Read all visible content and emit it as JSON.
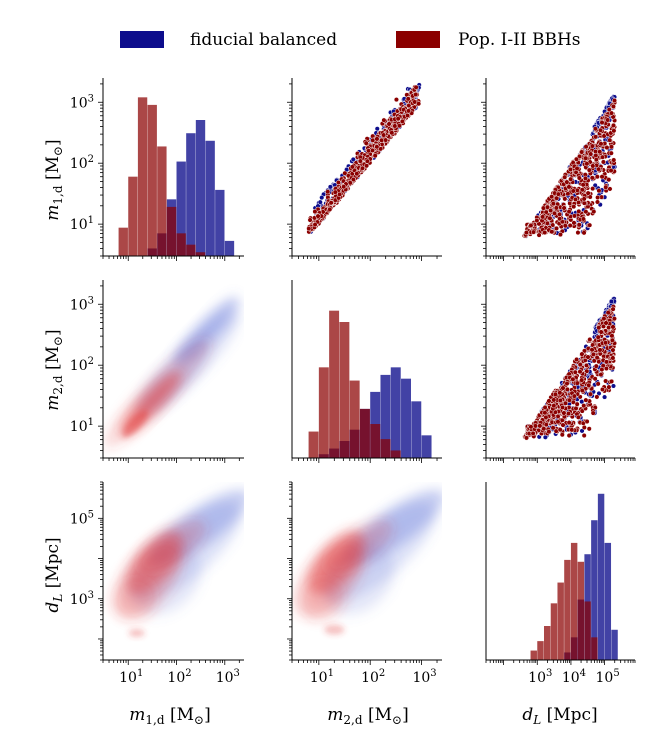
{
  "legend": {
    "entries": [
      {
        "label": "fiducial balanced",
        "color": "#0d0d8c"
      },
      {
        "label": "Pop. I-II BBHs",
        "color": "#8b0000"
      }
    ]
  },
  "colors": {
    "fiducial": "#0d0d8c",
    "popI": "#8b0000",
    "fiducial_kde": "#5b6fd6",
    "popI_kde": "#e23b3b"
  },
  "axis_titles": {
    "m1d": "m1,d [M⊙]",
    "m2d": "m2,d [M⊙]",
    "dL": "dL [Mpc]"
  },
  "tick_labels": {
    "mass": [
      "10^1",
      "10^2",
      "10^3"
    ],
    "dist_y": [
      "10^3",
      "10^5"
    ],
    "dist_x": [
      "10^3",
      "10^4",
      "10^5"
    ]
  },
  "chart_data": {
    "type": "corner",
    "variables": [
      "m1,d [M⊙]",
      "m2,d [M⊙]",
      "dL [Mpc]"
    ],
    "scale": "log",
    "ranges": {
      "m1d": [
        3,
        2500
      ],
      "m2d": [
        3,
        2500
      ],
      "dL_y": [
        30,
        800000
      ],
      "dL_x": [
        30,
        800000
      ]
    },
    "diagonal_histograms": [
      {
        "variable": "m1,d",
        "series": [
          {
            "name": "fiducial balanced",
            "bins_log10": [
              1.4,
              1.6,
              1.8,
              2.0,
              2.2,
              2.4,
              2.6,
              2.8,
              3.0
            ],
            "counts": [
              40,
              120,
              300,
              500,
              650,
              720,
              610,
              350,
              80
            ]
          },
          {
            "name": "Pop. I-II BBHs",
            "bins_log10": [
              0.8,
              1.0,
              1.2,
              1.4,
              1.6,
              1.8,
              2.0,
              2.2,
              2.4
            ],
            "counts": [
              150,
              420,
              840,
              800,
              580,
              260,
              120,
              60,
              20
            ]
          }
        ]
      },
      {
        "variable": "m2,d",
        "series": [
          {
            "name": "fiducial balanced",
            "bins_log10": [
              1.0,
              1.2,
              1.4,
              1.6,
              1.8,
              2.0,
              2.2,
              2.4,
              2.6,
              2.8,
              3.0
            ],
            "counts": [
              20,
              50,
              90,
              150,
              260,
              350,
              440,
              480,
              420,
              300,
              120
            ]
          },
          {
            "name": "Pop. I-II BBHs",
            "bins_log10": [
              0.8,
              1.0,
              1.2,
              1.4,
              1.6,
              1.8,
              2.0,
              2.2,
              2.4
            ],
            "counts": [
              140,
              480,
              780,
              720,
              410,
              260,
              180,
              100,
              40
            ]
          }
        ]
      },
      {
        "variable": "dL",
        "series": [
          {
            "name": "fiducial balanced",
            "bins_log10": [
              3.8,
              4.0,
              4.2,
              4.4,
              4.6,
              4.8,
              5.0,
              5.2
            ],
            "counts": [
              40,
              120,
              320,
              560,
              740,
              880,
              620,
              160
            ]
          },
          {
            "name": "Pop. I-II BBHs",
            "bins_log10": [
              2.8,
              3.0,
              3.2,
              3.4,
              3.6,
              3.8,
              4.0,
              4.2,
              4.4,
              4.6
            ],
            "counts": [
              50,
              100,
              180,
              300,
              410,
              530,
              620,
              520,
              310,
              120
            ]
          }
        ]
      }
    ],
    "scatter_panels": [
      {
        "x": "m2,d",
        "y": "m1,d",
        "relation": "m1 >= m2, dense band along m1≈m2, spread upward"
      },
      {
        "x": "dL",
        "y": "m1,d",
        "relation": "mass rises with dL, upper envelope ≈ 1000 at dL≈1e5"
      },
      {
        "x": "dL",
        "y": "m2,d",
        "relation": "mass rises with dL, upper envelope ≈ 1000 at dL≈1e5"
      }
    ],
    "kde_panels": [
      {
        "x": "m1,d",
        "y": "m2,d"
      },
      {
        "x": "m1,d",
        "y": "dL"
      },
      {
        "x": "m2,d",
        "y": "dL"
      }
    ]
  }
}
